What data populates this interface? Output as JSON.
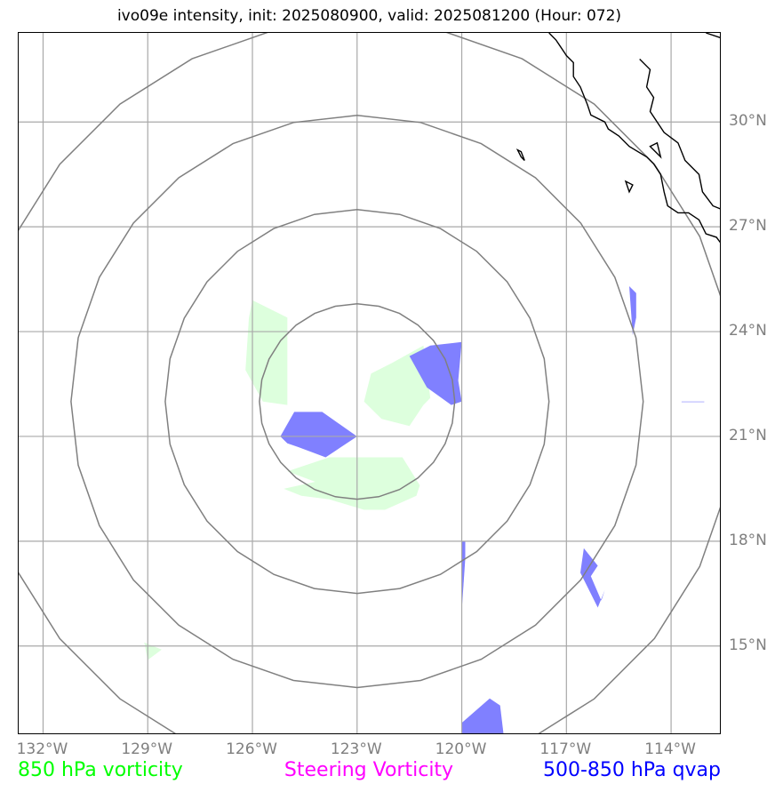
{
  "title": "ivo09e intensity, init: 2025080900, valid: 2025081200 (Hour: 072)",
  "map": {
    "lon_range": [
      -132.7,
      -112.55
    ],
    "lat_range": [
      12.45,
      32.55
    ],
    "grid_color": "#a9a9a9",
    "ring_color": "#808080",
    "coast_color": "#000000",
    "center": {
      "lon": -123.0,
      "lat": 22.0
    },
    "range_rings_deg": [
      2.8,
      5.5,
      8.2,
      10.9
    ],
    "x_ticks": [
      {
        "lon": -132,
        "label": "132°W"
      },
      {
        "lon": -129,
        "label": "129°W"
      },
      {
        "lon": -126,
        "label": "126°W"
      },
      {
        "lon": -123,
        "label": "123°W"
      },
      {
        "lon": -120,
        "label": "120°W"
      },
      {
        "lon": -117,
        "label": "117°W"
      },
      {
        "lon": -114,
        "label": "114°W"
      }
    ],
    "y_ticks": [
      {
        "lat": 30,
        "label": "30°N"
      },
      {
        "lat": 27,
        "label": "27°N"
      },
      {
        "lat": 24,
        "label": "24°N"
      },
      {
        "lat": 21,
        "label": "21°N"
      },
      {
        "lat": 18,
        "label": "18°N"
      },
      {
        "lat": 15,
        "label": "15°N"
      }
    ]
  },
  "legend": [
    {
      "label": "850 hPa vorticity",
      "color": "#00ff00"
    },
    {
      "label": "Steering Vorticity",
      "color": "#ff00ff"
    },
    {
      "label": "500-850 hPa qvap",
      "color": "#0000ff"
    }
  ],
  "fields": {
    "vorticity_850_color": "#ddffdd",
    "qvap_color": "#8080ff",
    "vorticity_850": [
      [
        [
          -126,
          24.9
        ],
        [
          -125,
          24.4
        ],
        [
          -125,
          21.9
        ],
        [
          -125.7,
          22
        ],
        [
          -126.2,
          22.9
        ],
        [
          -126.1,
          24.4
        ]
      ],
      [
        [
          -121.1,
          23.6
        ],
        [
          -122,
          23.1
        ],
        [
          -122.6,
          22.8
        ],
        [
          -122.8,
          22.0
        ],
        [
          -122.3,
          21.5
        ],
        [
          -121.5,
          21.3
        ],
        [
          -121.1,
          21.9
        ],
        [
          -120.9,
          22.1
        ]
      ],
      [
        [
          -125.0,
          20.0
        ],
        [
          -123.8,
          20.4
        ],
        [
          -122.2,
          20.4
        ],
        [
          -121.7,
          20.4
        ],
        [
          -121.2,
          19.6
        ],
        [
          -121.3,
          19.3
        ],
        [
          -122.2,
          18.9
        ],
        [
          -122.8,
          18.9
        ],
        [
          -123.8,
          19.2
        ],
        [
          -124.6,
          19.3
        ],
        [
          -125.1,
          19.5
        ],
        [
          -124.2,
          19.7
        ]
      ],
      [
        [
          -129.1,
          15.1
        ],
        [
          -128.6,
          14.9
        ],
        [
          -129.0,
          14.6
        ]
      ]
    ],
    "qvap": [
      [
        [
          -124.8,
          21.7
        ],
        [
          -124.0,
          21.7
        ],
        [
          -123,
          21.0
        ],
        [
          -123.9,
          20.4
        ],
        [
          -124.7,
          20.7
        ],
        [
          -125.0,
          20.8
        ],
        [
          -125.2,
          21.0
        ]
      ],
      [
        [
          -120.9,
          23.6
        ],
        [
          -120,
          23.7
        ],
        [
          -120.1,
          22.6
        ],
        [
          -120,
          22.0
        ],
        [
          -120.3,
          21.9
        ],
        [
          -121.0,
          22.4
        ],
        [
          -121.5,
          23.3
        ]
      ],
      [
        [
          -115.2,
          25.3
        ],
        [
          -115,
          25.1
        ],
        [
          -115,
          24.4
        ],
        [
          -115.1,
          23.9
        ]
      ],
      [
        [
          -113.7,
          22.0
        ],
        [
          -113.05,
          22.0
        ],
        [
          -113.05,
          21.98
        ],
        [
          -113.7,
          21.98
        ]
      ],
      [
        [
          -120,
          18.0
        ],
        [
          -119.9,
          18.0
        ],
        [
          -119.9,
          17.5
        ],
        [
          -120,
          16.0
        ]
      ],
      [
        [
          -116.1,
          17.3
        ],
        [
          -116.3,
          17.0
        ],
        [
          -116.0,
          16.3
        ],
        [
          -115.9,
          16.6
        ],
        [
          -116.1,
          16.1
        ],
        [
          -116.6,
          17.1
        ],
        [
          -116.5,
          17.8
        ]
      ],
      [
        [
          -120.0,
          12.45
        ],
        [
          -120.0,
          12.8
        ],
        [
          -119.2,
          13.5
        ],
        [
          -118.9,
          13.3
        ],
        [
          -118.8,
          12.45
        ]
      ]
    ]
  },
  "coastline": [
    [
      -117.5,
      32.55
    ],
    [
      -117.3,
      32.35
    ],
    [
      -117.2,
      32.2
    ],
    [
      -117.0,
      31.9
    ],
    [
      -116.8,
      31.7
    ],
    [
      -116.8,
      31.3
    ],
    [
      -116.6,
      31.0
    ],
    [
      -116.4,
      30.5
    ],
    [
      -116.3,
      30.2
    ],
    [
      -115.9,
      30.0
    ],
    [
      -115.8,
      29.8
    ],
    [
      -115.5,
      29.6
    ],
    [
      -115.2,
      29.3
    ],
    [
      -114.7,
      29.0
    ],
    [
      -114.5,
      28.8
    ],
    [
      -114.3,
      28.5
    ],
    [
      -114.2,
      28.0
    ],
    [
      -114.1,
      27.6
    ],
    [
      -113.8,
      27.4
    ],
    [
      -113.5,
      27.4
    ],
    [
      -113.2,
      27.2
    ],
    [
      -113.0,
      26.8
    ],
    [
      -112.7,
      26.7
    ],
    [
      -112.55,
      26.5
    ]
  ],
  "coastline_gulf": [
    [
      -113.0,
      32.55
    ],
    [
      -112.55,
      32.4
    ]
  ],
  "coastline_east": [
    [
      -114.9,
      31.8
    ],
    [
      -114.6,
      31.5
    ],
    [
      -114.7,
      31.0
    ],
    [
      -114.5,
      30.7
    ],
    [
      -114.6,
      30.3
    ],
    [
      -114.2,
      29.7
    ],
    [
      -113.8,
      29.4
    ],
    [
      -113.6,
      28.9
    ],
    [
      -113.2,
      28.5
    ],
    [
      -113.1,
      28.0
    ],
    [
      -112.8,
      27.6
    ],
    [
      -112.55,
      27.5
    ]
  ],
  "islands": [
    [
      [
        -118.4,
        29.2
      ],
      [
        -118.3,
        29.0
      ],
      [
        -118.2,
        28.9
      ],
      [
        -118.3,
        29.15
      ]
    ],
    [
      [
        -115.3,
        28.3
      ],
      [
        -115.1,
        28.2
      ],
      [
        -115.2,
        28.0
      ]
    ],
    [
      [
        -114.6,
        29.3
      ],
      [
        -114.3,
        29.0
      ],
      [
        -114.4,
        29.4
      ]
    ]
  ]
}
